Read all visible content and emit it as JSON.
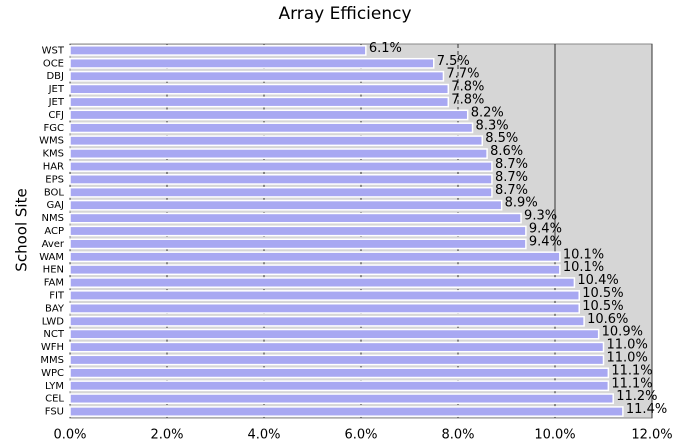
{
  "chart_data": {
    "type": "bar",
    "orientation": "horizontal",
    "title": "Array Efficiency",
    "y_label": "School Site",
    "categories": [
      "WST",
      "OCE",
      "DBJ",
      "JET",
      "JET",
      "CFJ",
      "FGC",
      "WMS",
      "KMS",
      "HAR",
      "EPS",
      "BOL",
      "GAJ",
      "NMS",
      "ACP",
      "Aver",
      "WAM",
      "HEN",
      "FAM",
      "FIT",
      "BAY",
      "LWD",
      "NCT",
      "WFH",
      "MMS",
      "WPC",
      "LYM",
      "CEL",
      "FSU"
    ],
    "values": [
      6.1,
      7.5,
      7.7,
      7.8,
      7.8,
      8.2,
      8.3,
      8.5,
      8.6,
      8.7,
      8.7,
      8.7,
      8.9,
      9.3,
      9.4,
      9.4,
      10.1,
      10.1,
      10.4,
      10.5,
      10.5,
      10.6,
      10.9,
      11.0,
      11.0,
      11.1,
      11.1,
      11.2,
      11.4
    ],
    "value_labels": [
      "6.1%",
      "7.5%",
      "7.7%",
      "7.8%",
      "7.8%",
      "8.2%",
      "8.3%",
      "8.5%",
      "8.6%",
      "8.7%",
      "8.7%",
      "8.7%",
      "8.9%",
      "9.3%",
      "9.4%",
      "9.4%",
      "10.1%",
      "10.1%",
      "10.4%",
      "10.5%",
      "10.5%",
      "10.6%",
      "10.9%",
      "11.0%",
      "11.0%",
      "11.1%",
      "11.1%",
      "11.2%",
      "11.4%"
    ],
    "color": "#a8a8f2",
    "xlim": [
      0,
      12
    ],
    "xticks": [
      {
        "value": 0,
        "label": "0.0%"
      },
      {
        "value": 2,
        "label": "2.0%"
      },
      {
        "value": 4,
        "label": "4.0%"
      },
      {
        "value": 6,
        "label": "6.0%"
      },
      {
        "value": 8,
        "label": "8.0%"
      },
      {
        "value": 10,
        "label": "10.0%"
      },
      {
        "value": 12,
        "label": "12.0%"
      }
    ],
    "grid": true
  }
}
